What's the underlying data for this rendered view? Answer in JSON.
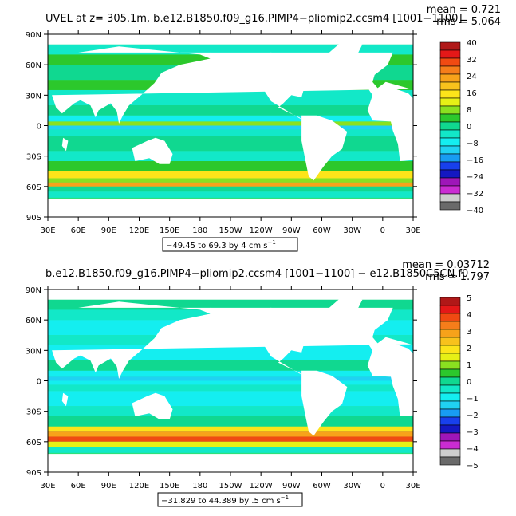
{
  "panels": [
    {
      "title": "UVEL at z= 305.1m, b.e12.B1850.f09_g16.PIMP4−pliomip2.ccsm4 [1001−1100]",
      "mean": "mean = 0.721",
      "rms": "rms = 5.064",
      "range": "−49.45 to 69.3 by 4 cm s",
      "range_unit_exp": "−1",
      "y_ticks": [
        "90N",
        "60N",
        "30N",
        "0",
        "30S",
        "60S",
        "90S"
      ],
      "x_ticks": [
        "30E",
        "60E",
        "90E",
        "120E",
        "150E",
        "180",
        "150W",
        "120W",
        "90W",
        "60W",
        "30W",
        "0",
        "30E"
      ],
      "colorbar_labels": [
        "40",
        "32",
        "24",
        "16",
        "8",
        "0",
        "−8",
        "−16",
        "−24",
        "−32",
        "−40"
      ]
    },
    {
      "title": "b.e12.B1850.f09_g16.PIMP4−pliomip2.ccsm4 [1001−1100] − e12.B1850C5CN.f0",
      "mean": "mean = 0.03712",
      "rms": "rms = 1.797",
      "range": "−31.829 to 44.389 by .5 cm s",
      "range_unit_exp": "−1",
      "y_ticks": [
        "90N",
        "60N",
        "30N",
        "0",
        "30S",
        "60S",
        "90S"
      ],
      "x_ticks": [
        "30E",
        "60E",
        "90E",
        "120E",
        "150E",
        "180",
        "150W",
        "120W",
        "90W",
        "60W",
        "30W",
        "0",
        "30E"
      ],
      "colorbar_labels": [
        "5",
        "4",
        "3",
        "2",
        "1",
        "0",
        "−1",
        "−2",
        "−3",
        "−4",
        "−5"
      ]
    }
  ],
  "colors": {
    "scale": [
      "#b01818",
      "#e41818",
      "#f04a12",
      "#f57d1a",
      "#f7a21a",
      "#f8c21c",
      "#fce41a",
      "#e6f016",
      "#8ae020",
      "#2cc82c",
      "#10d890",
      "#12e8c8",
      "#14eef0",
      "#20d2f2",
      "#189cf2",
      "#1840ec",
      "#1418c2",
      "#9e16b8",
      "#ca2cd2",
      "#cdcdcd",
      "#6a6a6a"
    ],
    "land": "#ffffff",
    "ocean_base": "#2fe07a"
  }
}
